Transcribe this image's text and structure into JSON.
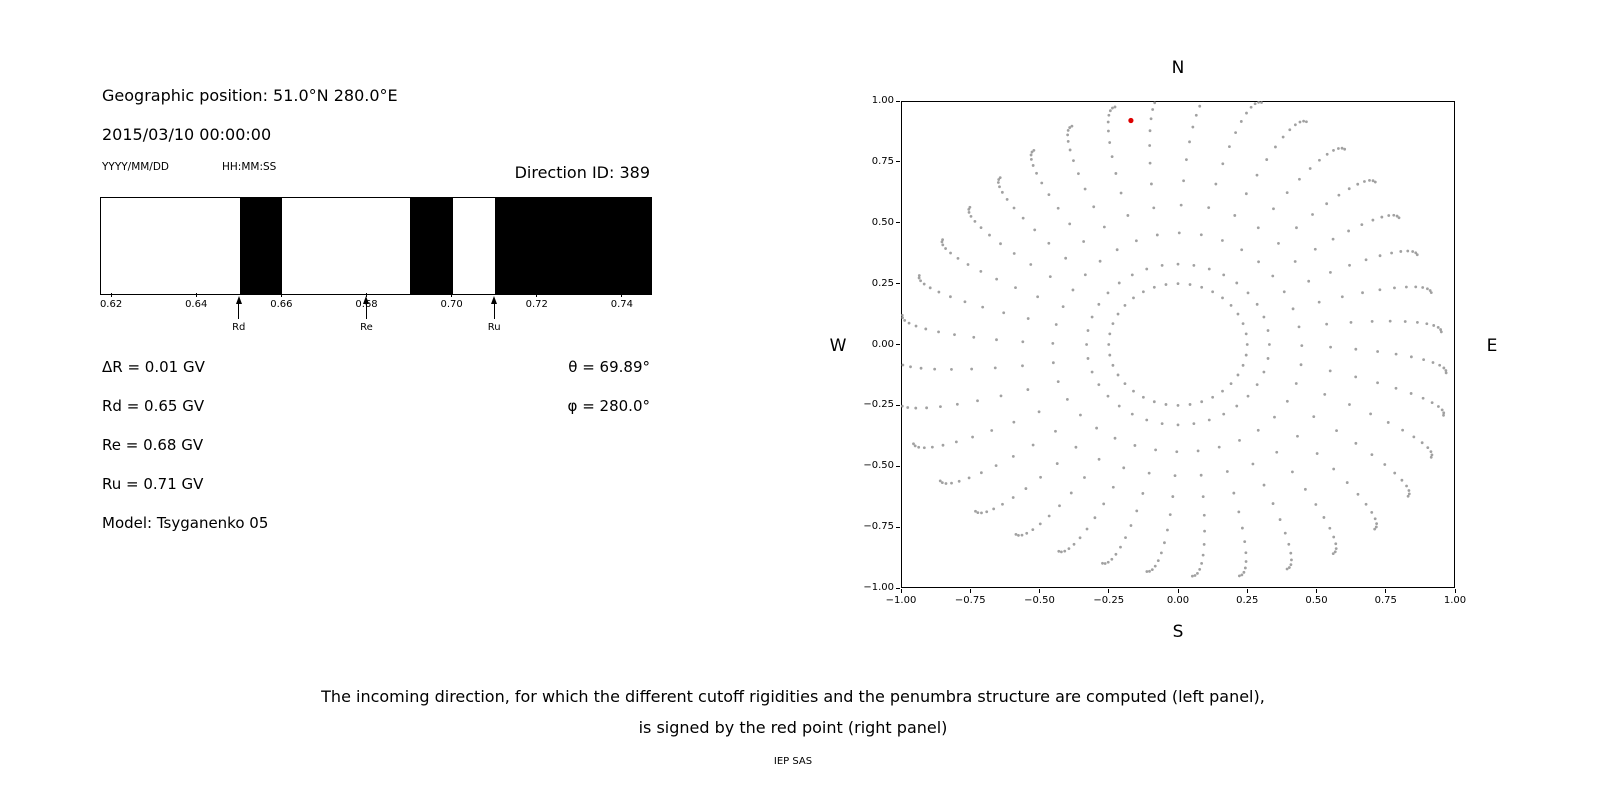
{
  "header": {
    "geo_position": "Geographic position: 51.0°N 280.0°E",
    "datetime": "2015/03/10 00:00:00",
    "date_format_label": "YYYY/MM/DD",
    "time_format_label": "HH:MM:SS",
    "direction_id_label": "Direction ID: 389"
  },
  "cutoff_values": {
    "delta_r": "ΔR = 0.01 GV",
    "rd": "Rd = 0.65 GV",
    "re": "Re = 0.68 GV",
    "ru": "Ru = 0.71 GV",
    "model": "Model: Tsyganenko 05",
    "theta": "θ = 69.89°",
    "phi": "φ = 280.0°"
  },
  "caption": {
    "line1": "The incoming direction, for which the different cutoff rigidities and the penumbra structure are computed (left panel),",
    "line2": "is signed by the red point (right panel)",
    "credit": "IEP SAS"
  },
  "chart_data": [
    {
      "type": "bar",
      "name": "penumbra-structure",
      "title": "",
      "xlabel": "",
      "xlim": [
        0.6174,
        0.7466
      ],
      "xticks": [
        0.62,
        0.64,
        0.66,
        0.68,
        0.7,
        0.72,
        0.74
      ],
      "xtick_labels": [
        "0.62",
        "0.64",
        "0.66",
        "0.68",
        "0.70",
        "0.72",
        "0.74"
      ],
      "black_bands": [
        [
          0.65,
          0.66
        ],
        [
          0.69,
          0.7
        ],
        [
          0.71,
          0.7466
        ]
      ],
      "bar_color": "#000000",
      "markers": [
        {
          "label": "Rd",
          "x": 0.65
        },
        {
          "label": "Re",
          "x": 0.68
        },
        {
          "label": "Ru",
          "x": 0.71
        }
      ]
    },
    {
      "type": "scatter",
      "name": "asymptotic-directions",
      "title": "",
      "xlim": [
        -1.0,
        1.0
      ],
      "ylim": [
        -1.0,
        1.0
      ],
      "xticks": [
        -1.0,
        -0.75,
        -0.5,
        -0.25,
        0.0,
        0.25,
        0.5,
        0.75,
        1.0
      ],
      "xtick_labels": [
        "−1.00",
        "−0.75",
        "−0.50",
        "−0.25",
        "0.00",
        "0.25",
        "0.50",
        "0.75",
        "1.00"
      ],
      "yticks": [
        1.0,
        0.75,
        0.5,
        0.25,
        0.0,
        -0.25,
        -0.5,
        -0.75,
        -1.0
      ],
      "ytick_labels": [
        "1.00",
        "0.75",
        "0.50",
        "0.25",
        "0.00",
        "−0.25",
        "−0.50",
        "−0.75",
        "−1.00"
      ],
      "grid": false,
      "compass": {
        "top": "N",
        "bottom": "S",
        "left": "W",
        "right": "E"
      },
      "dot_color": "#909090",
      "red_point": {
        "x": -0.17,
        "y": 0.92,
        "color": "#dd0000"
      },
      "pattern": {
        "num_spokes": 36,
        "inner_ring_radius": 0.25,
        "inner_ring_dots": 36,
        "spoke_r_start": 0.33,
        "spoke_r_end": 1.03,
        "dots_per_spoke": 13,
        "cluster_exponent": 2.3,
        "curvature_rad": 0.12
      }
    }
  ]
}
